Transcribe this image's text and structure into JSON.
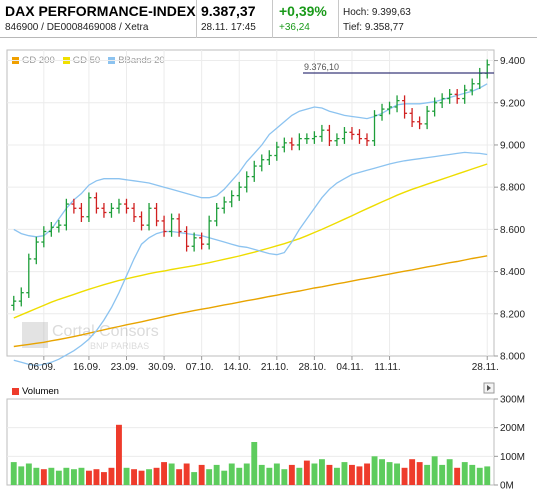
{
  "header": {
    "title": "DAX PERFORMANCE-INDEX",
    "subtitle": "846900 / DE0008469008 / Xetra",
    "price": "9.387,37",
    "date_time": "28.11. 17:45",
    "change_pct": "+0,39%",
    "change_abs": "+36,24",
    "high": "Hoch: 9.399,63",
    "low": "Tief: 9.358,77"
  },
  "colors": {
    "up": "#1e9e3a",
    "down": "#d02020",
    "gd200": "#e8a000",
    "gd50": "#e8e000",
    "bbands": "#7fb6e6",
    "grid": "#e8e8e8",
    "vol_up": "#5dcc5d",
    "vol_down": "#ee3b2b"
  },
  "price_chart": {
    "legend": [
      {
        "name": "GD 200",
        "color": "#f0a000"
      },
      {
        "name": "GD 50",
        "color": "#f0e000"
      },
      {
        "name": "BBands 20",
        "color": "#8cc3f0"
      }
    ],
    "y_ticks": [
      "9.400",
      "9.200",
      "9.000",
      "8.800",
      "8.600",
      "8.400",
      "8.200",
      "8.000"
    ],
    "x_ticks": [
      "06.09.",
      "16.09.",
      "23.09.",
      "30.09.",
      "07.10.",
      "14.10.",
      "21.10.",
      "28.10.",
      "04.11.",
      "11.11.",
      "28.11."
    ],
    "reference_label": "9.376,10",
    "watermark": "Cortal Consors",
    "watermark_sub": "BNP PARIBAS"
  },
  "volume_chart": {
    "legend": "Volumen",
    "y_ticks": [
      "300M",
      "200M",
      "100M",
      "0M"
    ]
  },
  "chart_data": [
    {
      "type": "candlestick",
      "title": "DAX PERFORMANCE-INDEX",
      "ylim": [
        8000,
        9450
      ],
      "reference_line": 9376.1,
      "categories": [
        "02.09.",
        "03.09.",
        "04.09.",
        "05.09.",
        "06.09.",
        "09.09.",
        "10.09.",
        "11.09.",
        "12.09.",
        "13.09.",
        "16.09.",
        "17.09.",
        "18.09.",
        "19.09.",
        "20.09.",
        "23.09.",
        "24.09.",
        "25.09.",
        "26.09.",
        "27.09.",
        "30.09.",
        "01.10.",
        "02.10.",
        "03.10.",
        "04.10.",
        "07.10.",
        "08.10.",
        "09.10.",
        "10.10.",
        "11.10.",
        "14.10.",
        "15.10.",
        "16.10.",
        "17.10.",
        "18.10.",
        "21.10.",
        "22.10.",
        "23.10.",
        "24.10.",
        "25.10.",
        "28.10.",
        "29.10.",
        "30.10.",
        "31.10.",
        "01.11.",
        "04.11.",
        "05.11.",
        "06.11.",
        "07.11.",
        "08.11.",
        "11.11.",
        "12.11.",
        "13.11.",
        "14.11.",
        "15.11.",
        "18.11.",
        "19.11.",
        "20.11.",
        "21.11.",
        "22.11.",
        "25.11.",
        "26.11.",
        "27.11.",
        "28.11."
      ],
      "close": [
        8260,
        8300,
        8460,
        8540,
        8590,
        8610,
        8620,
        8720,
        8700,
        8660,
        8750,
        8700,
        8680,
        8700,
        8720,
        8700,
        8660,
        8620,
        8700,
        8640,
        8590,
        8650,
        8590,
        8520,
        8560,
        8530,
        8640,
        8700,
        8730,
        8760,
        8800,
        8850,
        8900,
        8930,
        8950,
        8990,
        9010,
        9000,
        9030,
        9030,
        9040,
        9070,
        9020,
        9030,
        9060,
        9050,
        9030,
        9020,
        9140,
        9170,
        9180,
        9210,
        9150,
        9110,
        9100,
        9160,
        9200,
        9220,
        9240,
        9220,
        9260,
        9290,
        9340,
        9380
      ],
      "series": [
        {
          "name": "GD 200",
          "values": [
            8045,
            8050,
            8055,
            8060,
            8065,
            8072,
            8078,
            8085,
            8092,
            8100,
            8108,
            8116,
            8124,
            8132,
            8140,
            8148,
            8155,
            8162,
            8170,
            8178,
            8186,
            8194,
            8202,
            8208,
            8215,
            8222,
            8228,
            8235,
            8242,
            8248,
            8255,
            8262,
            8268,
            8275,
            8282,
            8288,
            8295,
            8302,
            8308,
            8315,
            8322,
            8328,
            8335,
            8342,
            8348,
            8355,
            8362,
            8368,
            8375,
            8382,
            8388,
            8395,
            8402,
            8408,
            8415,
            8422,
            8428,
            8435,
            8442,
            8448,
            8455,
            8462,
            8468,
            8475
          ]
        },
        {
          "name": "GD 50",
          "values": [
            8180,
            8195,
            8210,
            8225,
            8240,
            8255,
            8268,
            8280,
            8292,
            8304,
            8316,
            8327,
            8338,
            8348,
            8358,
            8366,
            8374,
            8382,
            8390,
            8397,
            8403,
            8410,
            8416,
            8422,
            8428,
            8435,
            8442,
            8450,
            8458,
            8466,
            8474,
            8483,
            8492,
            8502,
            8512,
            8522,
            8532,
            8544,
            8556,
            8570,
            8585,
            8600,
            8616,
            8632,
            8648,
            8665,
            8682,
            8698,
            8714,
            8730,
            8746,
            8762,
            8776,
            8790,
            8802,
            8814,
            8826,
            8838,
            8850,
            8862,
            8874,
            8886,
            8898,
            8910
          ]
        },
        {
          "name": "BBands 20 upper",
          "values": [
            8600,
            8580,
            8570,
            8565,
            8570,
            8600,
            8650,
            8700,
            8740,
            8770,
            8810,
            8830,
            8840,
            8840,
            8840,
            8835,
            8830,
            8825,
            8820,
            8810,
            8800,
            8790,
            8780,
            8770,
            8760,
            8750,
            8750,
            8760,
            8790,
            8830,
            8870,
            8920,
            8960,
            9000,
            9050,
            9080,
            9110,
            9140,
            9160,
            9170,
            9180,
            9175,
            9160,
            9150,
            9140,
            9135,
            9130,
            9125,
            9135,
            9150,
            9170,
            9190,
            9195,
            9195,
            9195,
            9200,
            9205,
            9215,
            9225,
            9235,
            9245,
            9255,
            9270,
            9290
          ]
        },
        {
          "name": "BBands 20 lower",
          "values": [
            7980,
            7970,
            7960,
            7955,
            7960,
            7970,
            7985,
            8005,
            8025,
            8050,
            8080,
            8120,
            8170,
            8230,
            8300,
            8380,
            8460,
            8530,
            8560,
            8580,
            8590,
            8590,
            8585,
            8580,
            8575,
            8570,
            8560,
            8550,
            8540,
            8530,
            8520,
            8515,
            8505,
            8495,
            8485,
            8480,
            8490,
            8540,
            8600,
            8650,
            8700,
            8750,
            8790,
            8820,
            8840,
            8860,
            8870,
            8880,
            8890,
            8900,
            8910,
            8918,
            8925,
            8930,
            8935,
            8940,
            8945,
            8950,
            8955,
            8960,
            8965,
            8962,
            8960,
            8955
          ]
        }
      ],
      "x_tick_labels": [
        "06.09.",
        "16.09.",
        "23.09.",
        "30.09.",
        "07.10.",
        "14.10.",
        "21.10.",
        "28.10.",
        "04.11.",
        "11.11.",
        "28.11."
      ]
    },
    {
      "type": "bar",
      "title": "Volumen",
      "ylim": [
        0,
        300
      ],
      "unit": "M",
      "values": [
        80,
        65,
        75,
        60,
        55,
        60,
        50,
        60,
        55,
        60,
        50,
        55,
        45,
        60,
        210,
        60,
        55,
        50,
        55,
        60,
        80,
        75,
        55,
        75,
        45,
        70,
        55,
        70,
        50,
        75,
        60,
        75,
        150,
        70,
        60,
        75,
        55,
        70,
        60,
        85,
        75,
        90,
        70,
        60,
        80,
        70,
        65,
        75,
        100,
        90,
        80,
        75,
        60,
        90,
        80,
        70,
        100,
        70,
        90,
        60,
        80,
        70,
        60,
        65
      ],
      "up": [
        1,
        1,
        1,
        1,
        0,
        1,
        1,
        1,
        1,
        1,
        0,
        0,
        0,
        0,
        0,
        1,
        0,
        0,
        1,
        0,
        0,
        1,
        0,
        0,
        1,
        0,
        1,
        1,
        1,
        1,
        1,
        1,
        1,
        1,
        1,
        1,
        1,
        0,
        1,
        0,
        1,
        1,
        0,
        1,
        1,
        0,
        0,
        0,
        1,
        1,
        1,
        1,
        0,
        0,
        0,
        1,
        1,
        1,
        1,
        0,
        1,
        1,
        1,
        1
      ]
    }
  ]
}
